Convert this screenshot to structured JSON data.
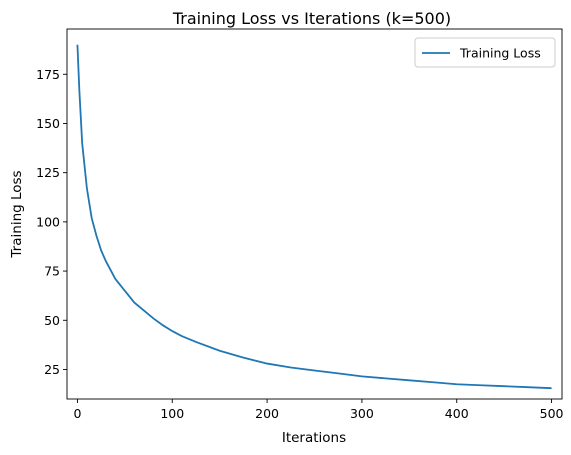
{
  "chart_data": {
    "type": "line",
    "title": "Training Loss vs Iterations (k=500)",
    "xlabel": "Iterations",
    "ylabel": "Training Loss",
    "xlim": [
      -11,
      511
    ],
    "ylim": [
      10,
      198
    ],
    "x_ticks": [
      0,
      100,
      200,
      300,
      400,
      500
    ],
    "y_ticks": [
      25,
      50,
      75,
      100,
      125,
      150,
      175
    ],
    "grid": false,
    "legend_position": "top-right",
    "series": [
      {
        "name": "Training Loss",
        "color": "#1f77b4",
        "x": [
          0,
          2,
          5,
          10,
          15,
          20,
          25,
          30,
          40,
          50,
          60,
          70,
          80,
          90,
          100,
          110,
          125,
          150,
          175,
          200,
          225,
          250,
          275,
          300,
          325,
          350,
          375,
          400,
          425,
          450,
          475,
          500
        ],
        "y": [
          190,
          167,
          140,
          117,
          102,
          93,
          85.5,
          80,
          71,
          65,
          59,
          55,
          51,
          47.5,
          44.5,
          42,
          39,
          34.5,
          31,
          28,
          26,
          24.5,
          23,
          21.5,
          20.5,
          19.5,
          18.5,
          17.5,
          17,
          16.5,
          16,
          15.5
        ]
      }
    ]
  }
}
